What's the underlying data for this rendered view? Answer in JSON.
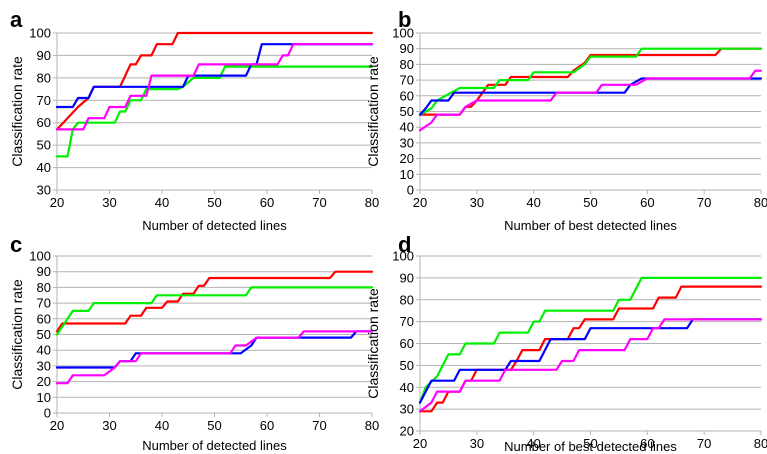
{
  "chart_data": [
    {
      "panel_label": "a",
      "type": "line",
      "xlabel": "Number of detected lines",
      "ylabel": "Classification rate",
      "xlim": [
        20,
        80
      ],
      "ylim": [
        30,
        100
      ],
      "xticks": [
        20,
        30,
        40,
        50,
        60,
        70,
        80
      ],
      "yticks": [
        30,
        40,
        50,
        60,
        70,
        80,
        90,
        100
      ],
      "grid": "horizontal",
      "legend": "none",
      "series": [
        {
          "color": "#ff0000",
          "step": true,
          "points": [
            [
              20,
              57
            ],
            [
              22,
              62
            ],
            [
              24,
              67
            ],
            [
              26,
              71
            ],
            [
              27,
              76
            ],
            [
              32,
              76
            ],
            [
              33,
              81
            ],
            [
              34,
              86
            ],
            [
              35,
              86
            ],
            [
              36,
              90
            ],
            [
              38,
              90
            ],
            [
              39,
              95
            ],
            [
              42,
              95
            ],
            [
              43,
              100
            ],
            [
              80,
              100
            ]
          ]
        },
        {
          "color": "#00ee00",
          "step": true,
          "points": [
            [
              20,
              45
            ],
            [
              22,
              45
            ],
            [
              23,
              57
            ],
            [
              24,
              60
            ],
            [
              31,
              60
            ],
            [
              32,
              65
            ],
            [
              33,
              65
            ],
            [
              34,
              70
            ],
            [
              36,
              70
            ],
            [
              37,
              75
            ],
            [
              43,
              75
            ],
            [
              44,
              76
            ],
            [
              46,
              80
            ],
            [
              51,
              80
            ],
            [
              52,
              85
            ],
            [
              80,
              85
            ]
          ]
        },
        {
          "color": "#0000ff",
          "step": true,
          "points": [
            [
              20,
              67
            ],
            [
              23,
              67
            ],
            [
              24,
              71
            ],
            [
              26,
              71
            ],
            [
              27,
              76
            ],
            [
              44,
              76
            ],
            [
              45,
              81
            ],
            [
              56,
              81
            ],
            [
              57,
              86
            ],
            [
              58,
              86
            ],
            [
              59,
              95
            ],
            [
              80,
              95
            ]
          ]
        },
        {
          "color": "#ff00ff",
          "step": true,
          "points": [
            [
              20,
              57
            ],
            [
              25,
              57
            ],
            [
              26,
              62
            ],
            [
              29,
              62
            ],
            [
              30,
              67
            ],
            [
              33,
              67
            ],
            [
              34,
              72
            ],
            [
              37,
              72
            ],
            [
              38,
              81
            ],
            [
              46,
              81
            ],
            [
              47,
              86
            ],
            [
              62,
              86
            ],
            [
              63,
              90
            ],
            [
              64,
              90
            ],
            [
              65,
              95
            ],
            [
              80,
              95
            ]
          ]
        }
      ]
    },
    {
      "panel_label": "b",
      "type": "line",
      "xlabel": "Number of best detected lines",
      "ylabel": "Classification rate",
      "xlim": [
        20,
        80
      ],
      "ylim": [
        0,
        100
      ],
      "xticks": [
        20,
        30,
        40,
        50,
        60,
        70,
        80
      ],
      "yticks": [
        0,
        10,
        20,
        30,
        40,
        50,
        60,
        70,
        80,
        90,
        100
      ],
      "grid": "horizontal",
      "legend": "none",
      "series": [
        {
          "color": "#ff0000",
          "step": true,
          "points": [
            [
              20,
              48
            ],
            [
              27,
              48
            ],
            [
              28,
              53
            ],
            [
              29,
              53
            ],
            [
              30,
              57
            ],
            [
              31,
              62
            ],
            [
              32,
              67
            ],
            [
              35,
              67
            ],
            [
              36,
              72
            ],
            [
              46,
              72
            ],
            [
              47,
              76
            ],
            [
              49,
              81
            ],
            [
              50,
              86
            ],
            [
              72,
              86
            ],
            [
              73,
              90
            ],
            [
              80,
              90
            ]
          ]
        },
        {
          "color": "#00ee00",
          "step": true,
          "points": [
            [
              20,
              48
            ],
            [
              22,
              52
            ],
            [
              23,
              57
            ],
            [
              25,
              61
            ],
            [
              27,
              65
            ],
            [
              33,
              65
            ],
            [
              34,
              70
            ],
            [
              39,
              70
            ],
            [
              40,
              75
            ],
            [
              47,
              75
            ],
            [
              49,
              80
            ],
            [
              50,
              85
            ],
            [
              58,
              85
            ],
            [
              59,
              90
            ],
            [
              80,
              90
            ]
          ]
        },
        {
          "color": "#0000ff",
          "step": true,
          "points": [
            [
              20,
              48
            ],
            [
              21,
              52
            ],
            [
              22,
              57
            ],
            [
              25,
              57
            ],
            [
              26,
              62
            ],
            [
              56,
              62
            ],
            [
              57,
              67
            ],
            [
              59,
              71
            ],
            [
              80,
              71
            ]
          ]
        },
        {
          "color": "#ff00ff",
          "step": true,
          "points": [
            [
              20,
              38
            ],
            [
              22,
              43
            ],
            [
              23,
              48
            ],
            [
              27,
              48
            ],
            [
              28,
              53
            ],
            [
              30,
              57
            ],
            [
              43,
              57
            ],
            [
              44,
              62
            ],
            [
              51,
              62
            ],
            [
              52,
              67
            ],
            [
              58,
              67
            ],
            [
              60,
              71
            ],
            [
              78,
              71
            ],
            [
              79,
              76
            ],
            [
              80,
              76
            ]
          ]
        }
      ]
    },
    {
      "panel_label": "c",
      "type": "line",
      "xlabel": "Number of detected lines",
      "ylabel": "Classification rate",
      "xlim": [
        20,
        80
      ],
      "ylim": [
        0,
        100
      ],
      "xticks": [
        20,
        30,
        40,
        50,
        60,
        70,
        80
      ],
      "yticks": [
        0,
        10,
        20,
        30,
        40,
        50,
        60,
        70,
        80,
        90,
        100
      ],
      "grid": "horizontal",
      "legend": "none",
      "series": [
        {
          "color": "#ff0000",
          "step": true,
          "points": [
            [
              20,
              52
            ],
            [
              21,
              57
            ],
            [
              33,
              57
            ],
            [
              34,
              62
            ],
            [
              36,
              62
            ],
            [
              37,
              67
            ],
            [
              40,
              67
            ],
            [
              41,
              71
            ],
            [
              43,
              71
            ],
            [
              44,
              76
            ],
            [
              46,
              76
            ],
            [
              47,
              81
            ],
            [
              48,
              81
            ],
            [
              49,
              86
            ],
            [
              72,
              86
            ],
            [
              73,
              90
            ],
            [
              80,
              90
            ]
          ]
        },
        {
          "color": "#00ee00",
          "step": true,
          "points": [
            [
              20,
              50
            ],
            [
              22,
              60
            ],
            [
              23,
              65
            ],
            [
              26,
              65
            ],
            [
              27,
              70
            ],
            [
              38,
              70
            ],
            [
              39,
              75
            ],
            [
              56,
              75
            ],
            [
              57,
              80
            ],
            [
              80,
              80
            ]
          ]
        },
        {
          "color": "#0000ff",
          "step": true,
          "points": [
            [
              20,
              29
            ],
            [
              31,
              29
            ],
            [
              32,
              33
            ],
            [
              34,
              33
            ],
            [
              35,
              38
            ],
            [
              55,
              38
            ],
            [
              57,
              43
            ],
            [
              58,
              48
            ],
            [
              76,
              48
            ],
            [
              77,
              52
            ],
            [
              80,
              52
            ]
          ]
        },
        {
          "color": "#ff00ff",
          "step": true,
          "points": [
            [
              20,
              19
            ],
            [
              22,
              19
            ],
            [
              23,
              24
            ],
            [
              29,
              24
            ],
            [
              31,
              29
            ],
            [
              32,
              33
            ],
            [
              35,
              33
            ],
            [
              36,
              38
            ],
            [
              53,
              38
            ],
            [
              54,
              43
            ],
            [
              56,
              43
            ],
            [
              58,
              48
            ],
            [
              66,
              48
            ],
            [
              67,
              52
            ],
            [
              80,
              52
            ]
          ]
        }
      ]
    },
    {
      "panel_label": "d",
      "type": "line",
      "xlabel": "Number of best detected lines",
      "ylabel": "Classification rate",
      "xlim": [
        20,
        80
      ],
      "ylim": [
        20,
        100
      ],
      "xticks": [
        20,
        30,
        40,
        50,
        60,
        70,
        80
      ],
      "yticks": [
        20,
        30,
        40,
        50,
        60,
        70,
        80,
        90,
        100
      ],
      "grid": "horizontal",
      "legend": "none",
      "series": [
        {
          "color": "#ff0000",
          "step": true,
          "points": [
            [
              20,
              29
            ],
            [
              22,
              29
            ],
            [
              23,
              33
            ],
            [
              24,
              33
            ],
            [
              25,
              38
            ],
            [
              27,
              38
            ],
            [
              28,
              43
            ],
            [
              29,
              43
            ],
            [
              30,
              48
            ],
            [
              36,
              48
            ],
            [
              37,
              52
            ],
            [
              38,
              57
            ],
            [
              41,
              57
            ],
            [
              42,
              62
            ],
            [
              46,
              62
            ],
            [
              47,
              67
            ],
            [
              48,
              67
            ],
            [
              49,
              71
            ],
            [
              54,
              71
            ],
            [
              55,
              76
            ],
            [
              61,
              76
            ],
            [
              62,
              81
            ],
            [
              65,
              81
            ],
            [
              66,
              86
            ],
            [
              80,
              86
            ]
          ]
        },
        {
          "color": "#00ee00",
          "step": true,
          "points": [
            [
              20,
              33
            ],
            [
              21,
              40
            ],
            [
              23,
              45
            ],
            [
              24,
              50
            ],
            [
              25,
              55
            ],
            [
              27,
              55
            ],
            [
              28,
              60
            ],
            [
              33,
              60
            ],
            [
              34,
              65
            ],
            [
              39,
              65
            ],
            [
              40,
              70
            ],
            [
              41,
              70
            ],
            [
              42,
              75
            ],
            [
              54,
              75
            ],
            [
              55,
              80
            ],
            [
              57,
              80
            ],
            [
              58,
              85
            ],
            [
              59,
              90
            ],
            [
              80,
              90
            ]
          ]
        },
        {
          "color": "#0000ff",
          "step": true,
          "points": [
            [
              20,
              33
            ],
            [
              21,
              38
            ],
            [
              22,
              43
            ],
            [
              26,
              43
            ],
            [
              27,
              48
            ],
            [
              35,
              48
            ],
            [
              36,
              52
            ],
            [
              41,
              52
            ],
            [
              42,
              57
            ],
            [
              43,
              62
            ],
            [
              49,
              62
            ],
            [
              50,
              67
            ],
            [
              67,
              67
            ],
            [
              68,
              71
            ],
            [
              80,
              71
            ]
          ]
        },
        {
          "color": "#ff00ff",
          "step": true,
          "points": [
            [
              20,
              29
            ],
            [
              22,
              33
            ],
            [
              23,
              38
            ],
            [
              27,
              38
            ],
            [
              28,
              43
            ],
            [
              34,
              43
            ],
            [
              35,
              48
            ],
            [
              44,
              48
            ],
            [
              45,
              52
            ],
            [
              47,
              52
            ],
            [
              48,
              57
            ],
            [
              56,
              57
            ],
            [
              57,
              62
            ],
            [
              60,
              62
            ],
            [
              61,
              67
            ],
            [
              62,
              67
            ],
            [
              63,
              71
            ],
            [
              80,
              71
            ]
          ]
        }
      ]
    }
  ]
}
